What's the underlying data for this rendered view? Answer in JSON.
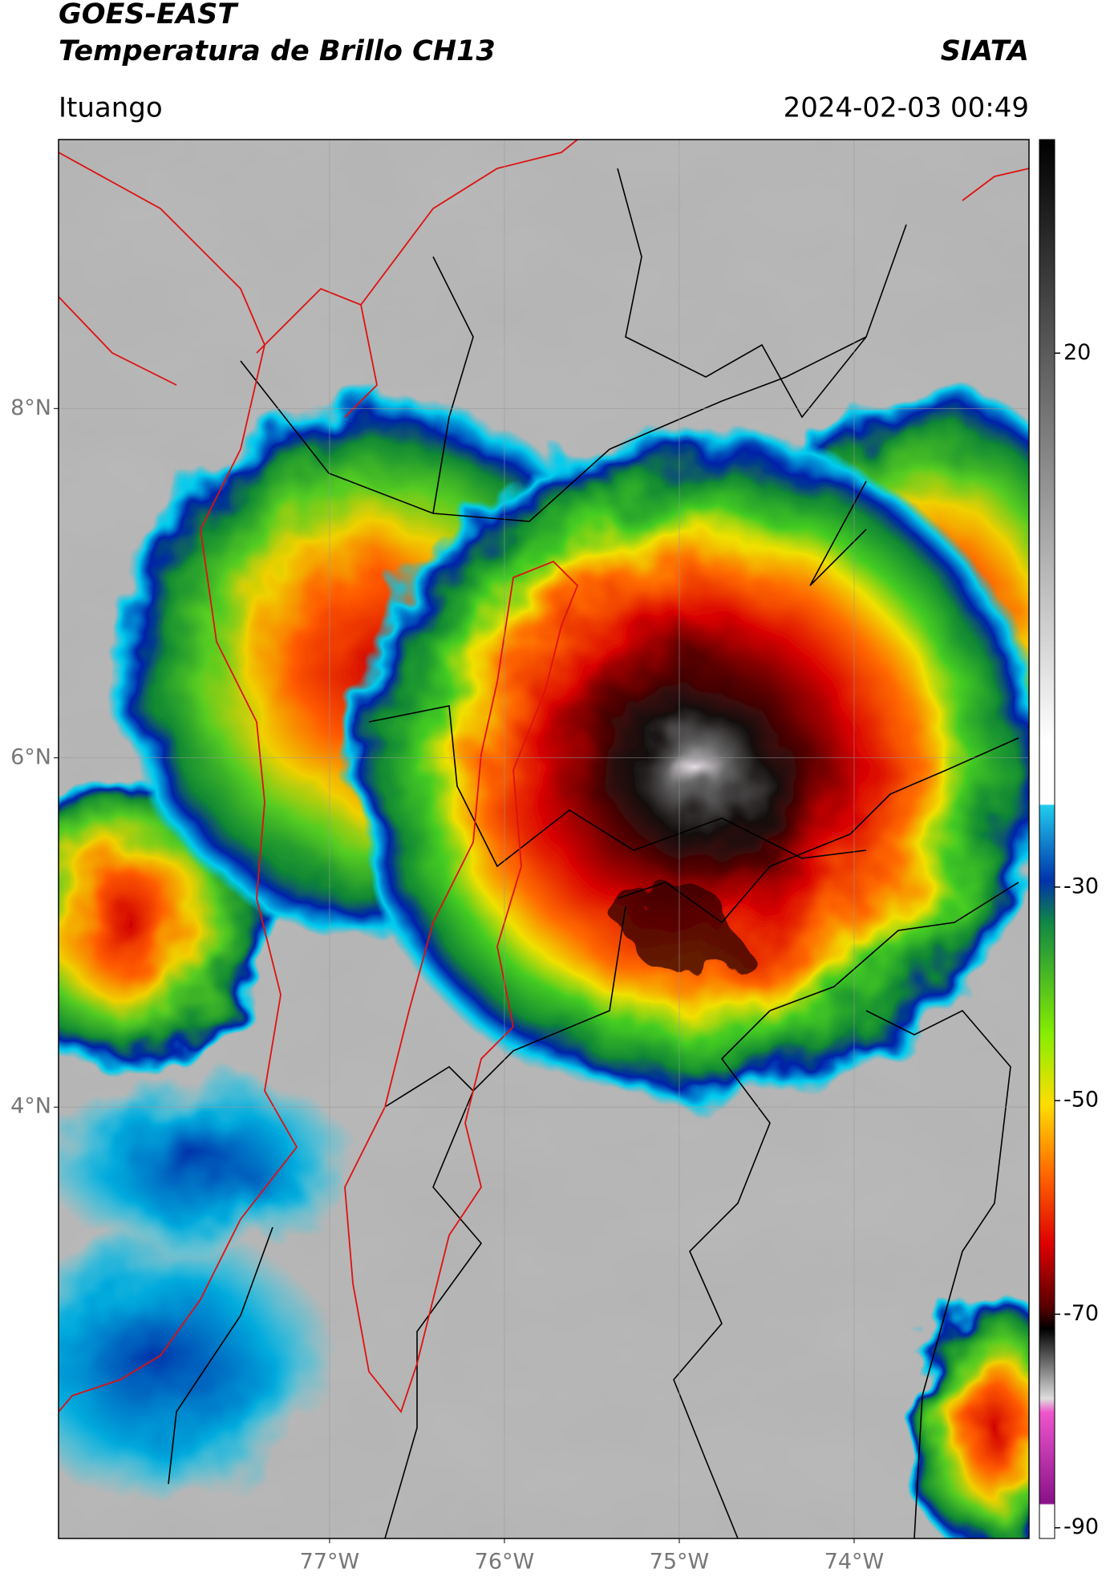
{
  "header": {
    "title": "GOES-EAST",
    "subtitle": "Temperatura de Brillo CH13",
    "source": "SIATA",
    "location": "Ituango",
    "datetime": "2024-02-03 00:49"
  },
  "chart_data": {
    "type": "map",
    "xlim": [
      -78.55,
      -73.0
    ],
    "ylim": [
      1.53,
      9.54
    ],
    "xticks": [
      {
        "value": -77,
        "label": "77°W"
      },
      {
        "value": -76,
        "label": "76°W"
      },
      {
        "value": -75,
        "label": "75°W"
      },
      {
        "value": -74,
        "label": "74°W"
      }
    ],
    "yticks": [
      {
        "value": 8,
        "label": "8°N"
      },
      {
        "value": 6,
        "label": "6°N"
      },
      {
        "value": 4,
        "label": "4°N"
      }
    ],
    "grid": true,
    "colorbar": {
      "lim": [
        -91,
        40
      ],
      "ticks": [
        20,
        -30,
        -50,
        -70,
        -90
      ]
    }
  }
}
